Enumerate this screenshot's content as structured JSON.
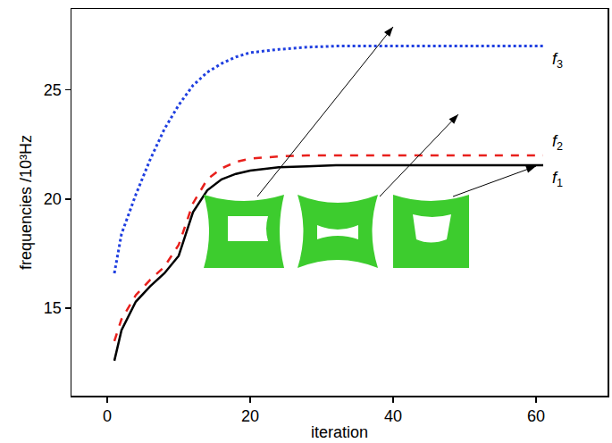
{
  "chart_data": {
    "type": "line",
    "x_label": "iteration",
    "y_label": "frequencies /10³Hz",
    "x": [
      1,
      2,
      4,
      6,
      8,
      10,
      12,
      14,
      16,
      18,
      20,
      24,
      28,
      32,
      36,
      40,
      45,
      50,
      55,
      61
    ],
    "series": [
      {
        "name": "f1",
        "color": "#000000",
        "line_style": "solid",
        "values": [
          12.6,
          14.0,
          15.3,
          16.0,
          16.6,
          17.4,
          19.4,
          20.4,
          20.9,
          21.15,
          21.3,
          21.45,
          21.5,
          21.55,
          21.55,
          21.55,
          21.55,
          21.55,
          21.55,
          21.55
        ]
      },
      {
        "name": "f2",
        "color": "#e8201c",
        "line_style": "dashed",
        "values": [
          13.5,
          14.5,
          15.6,
          16.3,
          16.9,
          17.9,
          19.8,
          20.9,
          21.4,
          21.7,
          21.85,
          21.95,
          22.0,
          22.0,
          22.0,
          22.0,
          22.0,
          22.0,
          22.0,
          22.0
        ]
      },
      {
        "name": "f3",
        "color": "#1f3fe0",
        "line_style": "dotted",
        "values": [
          16.6,
          18.4,
          20.2,
          21.8,
          23.2,
          24.3,
          25.2,
          25.8,
          26.2,
          26.5,
          26.7,
          26.85,
          26.95,
          27.0,
          27.0,
          27.0,
          27.0,
          27.0,
          27.0,
          27.0
        ]
      }
    ],
    "xlim": [
      -5,
      70
    ],
    "xticks": [
      0,
      20,
      40,
      60
    ],
    "ylim": [
      11,
      28.7
    ],
    "yticks": [
      15,
      20,
      25
    ],
    "grid": false
  }
}
